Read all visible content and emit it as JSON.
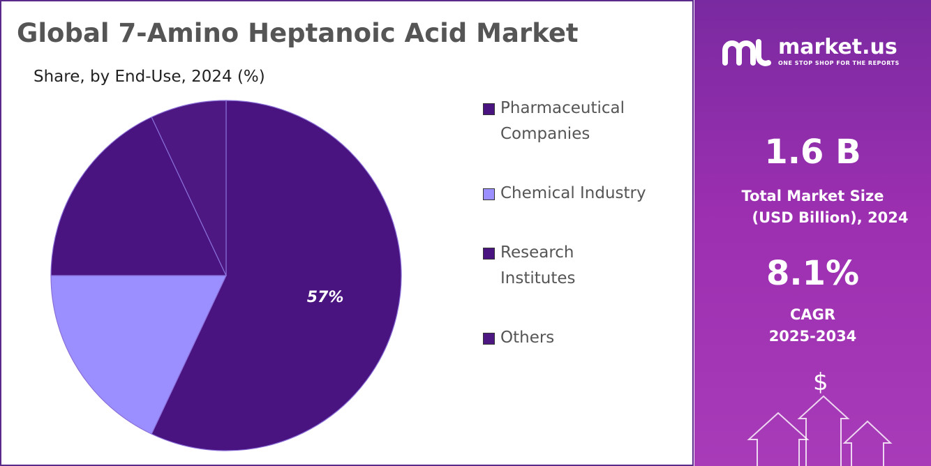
{
  "chart_data": {
    "type": "pie",
    "title": "Global 7-Amino Heptanoic Acid Market",
    "subtitle": "Share, by End-Use, 2024 (%)",
    "categories": [
      "Pharmaceutical Companies",
      "Chemical Industry",
      "Research Institutes",
      "Others"
    ],
    "values": [
      57,
      18,
      18,
      7
    ],
    "value_labels": [
      "57%",
      null,
      null,
      null
    ],
    "colors": [
      "#4a1480",
      "#9b8fff",
      "#4a1480",
      "#4d1882"
    ]
  },
  "sidebar": {
    "brand": "market.us",
    "tagline": "ONE STOP SHOP FOR THE REPORTS",
    "market_size": "1.6 B",
    "market_size_label": [
      "Total Market Size",
      "(USD Billion), 2024"
    ],
    "cagr": "8.1%",
    "cagr_label": [
      "CAGR",
      "2025-2034"
    ],
    "icon": "$"
  }
}
